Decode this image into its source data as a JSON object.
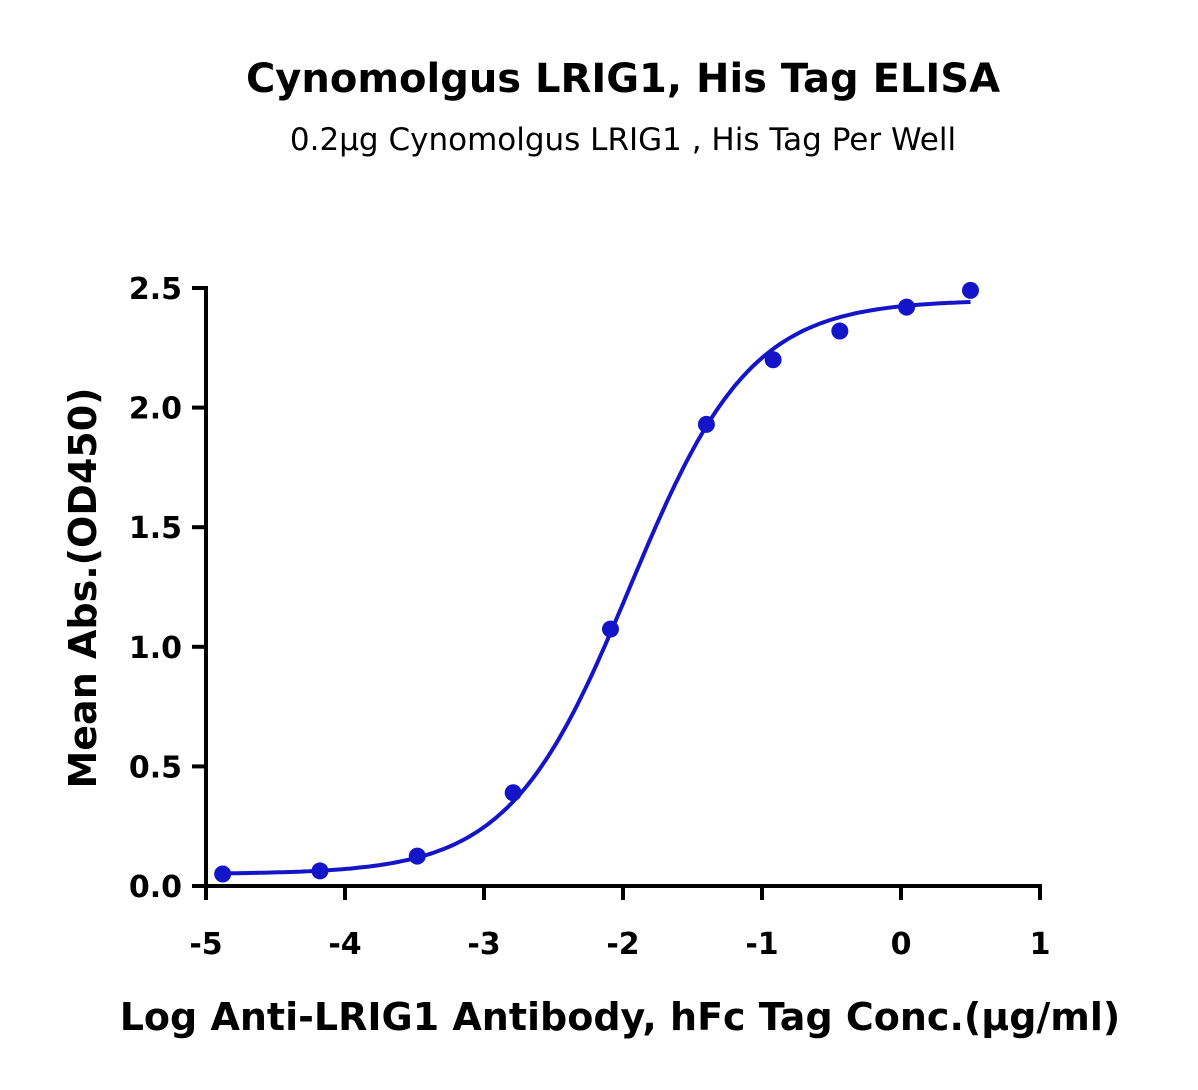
{
  "chart_data": {
    "type": "scatter",
    "title": "Cynomolgus LRIG1, His Tag ELISA",
    "subtitle": "0.2μg Cynomolgus LRIG1 , His Tag Per Well",
    "xlabel": "Log Anti-LRIG1 Antibody, hFc Tag Conc.(μg/ml)",
    "ylabel": "Mean Abs.(OD450)",
    "xlim": [
      -5,
      1
    ],
    "ylim": [
      0,
      2.5
    ],
    "xticks": [
      "-5",
      "-4",
      "-3",
      "-2",
      "-1",
      "0",
      "1"
    ],
    "yticks": [
      "0.0",
      "0.5",
      "1.0",
      "1.5",
      "2.0",
      "2.5"
    ],
    "grid": false,
    "color": "#1414c8",
    "series": [
      {
        "x": [
          -4.88,
          -4.18,
          -3.48,
          -2.79,
          -2.09,
          -1.4,
          -0.92,
          -0.44,
          0.04,
          0.5
        ],
        "y": [
          0.05,
          0.063,
          0.125,
          0.39,
          1.074,
          1.93,
          2.2,
          2.32,
          2.42,
          2.49
        ],
        "fit": {
          "model": "4PL",
          "bottom": 0.05,
          "top": 2.45,
          "logEC50": -1.95,
          "hill": 1.0
        }
      }
    ]
  }
}
